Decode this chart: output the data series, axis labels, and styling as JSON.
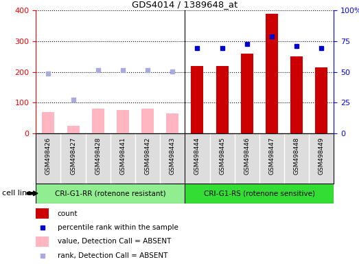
{
  "title": "GDS4014 / 1389648_at",
  "samples": [
    "GSM498426",
    "GSM498427",
    "GSM498428",
    "GSM498441",
    "GSM498442",
    "GSM498443",
    "GSM498444",
    "GSM498445",
    "GSM498446",
    "GSM498447",
    "GSM498448",
    "GSM498449"
  ],
  "count_values": [
    70,
    25,
    80,
    75,
    80,
    65,
    220,
    220,
    260,
    390,
    250,
    215
  ],
  "count_absent": [
    true,
    true,
    true,
    true,
    true,
    true,
    false,
    false,
    false,
    false,
    false,
    false
  ],
  "rank_values": [
    195,
    110,
    207,
    207,
    207,
    202,
    278,
    278,
    292,
    315,
    285,
    278
  ],
  "rank_absent": [
    true,
    true,
    true,
    true,
    true,
    true,
    false,
    false,
    false,
    false,
    false,
    false
  ],
  "group_labels": [
    "CRI-G1-RR (rotenone resistant)",
    "CRI-G1-RS (rotenone sensitive)"
  ],
  "group_split": 6,
  "group_colors": [
    "#90EE90",
    "#33DD33"
  ],
  "cell_line_label": "cell line",
  "ylim_left": [
    0,
    400
  ],
  "ylim_right": [
    0,
    100
  ],
  "yticks_left": [
    0,
    100,
    200,
    300,
    400
  ],
  "yticks_right": [
    0,
    25,
    50,
    75,
    100
  ],
  "ytick_labels_right": [
    "0",
    "25",
    "50",
    "75",
    "100%"
  ],
  "bar_width": 0.5,
  "count_color_present": "#CC0000",
  "count_color_absent": "#FFB6C1",
  "rank_color_present": "#0000CC",
  "rank_color_absent": "#AAAADD",
  "rank_marker": "s",
  "rank_marker_size": 5,
  "plot_bg": "#FFFFFF",
  "xticklabel_bg": "#DDDDDD",
  "legend_items": [
    {
      "label": "count",
      "type": "bar",
      "color": "#CC0000"
    },
    {
      "label": "percentile rank within the sample",
      "type": "marker",
      "color": "#0000CC"
    },
    {
      "label": "value, Detection Call = ABSENT",
      "type": "bar",
      "color": "#FFB6C1"
    },
    {
      "label": "rank, Detection Call = ABSENT",
      "type": "marker",
      "color": "#AAAADD"
    }
  ]
}
